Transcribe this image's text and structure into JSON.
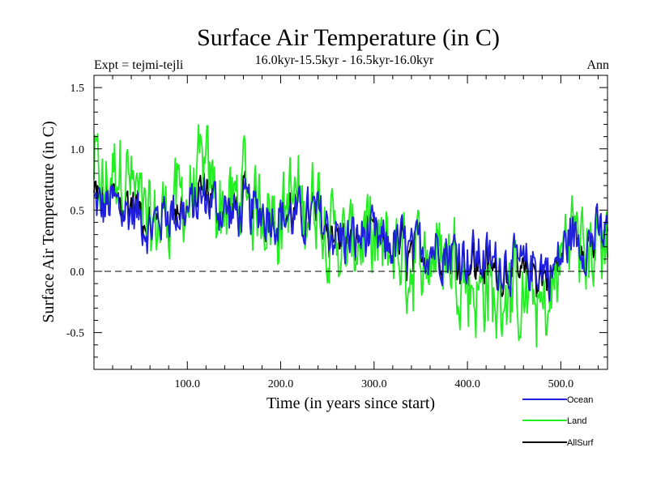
{
  "chart_data": {
    "type": "line",
    "title": "Surface Air Temperature (in C)",
    "subtitle": "16.0kyr-15.5kyr - 16.5kyr-16.0kyr",
    "left_label": "Expt = tejmi-tejli",
    "right_label": "Ann",
    "xlabel": "Time (in years since start)",
    "ylabel": "Surface Air Temperature (in C)",
    "xlim": [
      0,
      550
    ],
    "ylim": [
      -0.8,
      1.6
    ],
    "xticks": [
      100,
      200,
      300,
      400,
      500
    ],
    "xtick_labels": [
      "100.0",
      "200.0",
      "300.0",
      "400.0",
      "500.0"
    ],
    "yticks": [
      -0.5,
      0.0,
      0.5,
      1.0,
      1.5
    ],
    "ytick_labels": [
      "-0.5",
      "0.0",
      "0.5",
      "1.0",
      "1.5"
    ],
    "reference_line": 0.0,
    "legend_position": "bottom-right",
    "colors": {
      "Ocean": "#1f1fdc",
      "Land": "#22ee22",
      "AllSurf": "#000000"
    },
    "series_knots": {
      "x": [
        0,
        10,
        20,
        30,
        40,
        50,
        60,
        70,
        80,
        90,
        100,
        110,
        120,
        130,
        140,
        150,
        160,
        170,
        180,
        190,
        200,
        210,
        220,
        230,
        240,
        250,
        260,
        270,
        280,
        290,
        300,
        310,
        320,
        330,
        340,
        350,
        360,
        370,
        380,
        390,
        400,
        410,
        420,
        430,
        440,
        450,
        460,
        470,
        480,
        490,
        500,
        510,
        520,
        530,
        540,
        550
      ],
      "Ocean": [
        0.55,
        0.5,
        0.55,
        0.48,
        0.5,
        0.45,
        0.35,
        0.45,
        0.5,
        0.48,
        0.48,
        0.55,
        0.6,
        0.55,
        0.5,
        0.45,
        0.5,
        0.48,
        0.5,
        0.48,
        0.45,
        0.45,
        0.42,
        0.45,
        0.45,
        0.35,
        0.3,
        0.25,
        0.25,
        0.3,
        0.25,
        0.2,
        0.22,
        0.22,
        0.12,
        0.2,
        0.2,
        0.22,
        0.15,
        0.18,
        0.12,
        0.12,
        0.1,
        0.05,
        0.1,
        0.05,
        0.0,
        0.05,
        0.05,
        0.0,
        0.1,
        0.3,
        0.25,
        0.25,
        0.3,
        0.3
      ],
      "Land": [
        0.85,
        0.6,
        0.8,
        0.9,
        0.7,
        0.5,
        0.3,
        0.4,
        0.55,
        0.6,
        0.55,
        0.7,
        0.8,
        0.6,
        0.55,
        0.5,
        0.75,
        0.5,
        0.6,
        0.5,
        0.45,
        0.6,
        0.55,
        0.5,
        0.6,
        0.35,
        0.3,
        0.15,
        0.25,
        0.3,
        0.15,
        0.1,
        0.2,
        0.1,
        0.0,
        0.15,
        0.15,
        0.2,
        0.1,
        0.1,
        -0.05,
        -0.2,
        -0.1,
        -0.3,
        -0.1,
        -0.2,
        -0.3,
        -0.2,
        -0.35,
        -0.25,
        0.1,
        0.4,
        0.25,
        0.2,
        0.2,
        0.25
      ]
    },
    "legend": [
      {
        "name": "Ocean",
        "label": "Ocean"
      },
      {
        "name": "Land",
        "label": "Land"
      },
      {
        "name": "AllSurf",
        "label": "AllSurf"
      }
    ]
  }
}
